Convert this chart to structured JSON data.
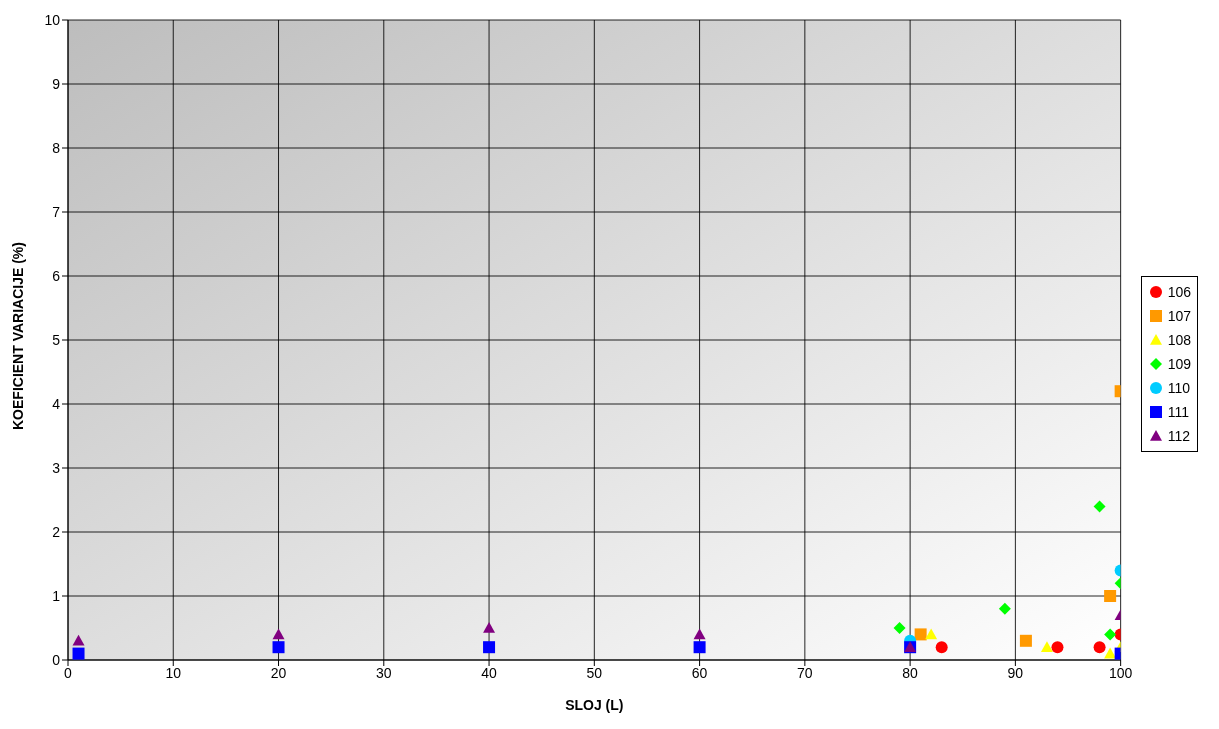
{
  "chart_data": {
    "type": "scatter",
    "xlabel": "SLOJ (L)",
    "ylabel": "KOEFICIENT VARIACIJE (%)",
    "xlim": [
      0,
      100
    ],
    "xticks": [
      0,
      10,
      20,
      30,
      40,
      50,
      60,
      70,
      80,
      90,
      100
    ],
    "ylim": [
      0,
      10
    ],
    "yticks": [
      0,
      1,
      2,
      3,
      4,
      5,
      6,
      7,
      8,
      9,
      10
    ],
    "grid": true,
    "legend": "right",
    "series": [
      {
        "name": "106",
        "color": "#ff0000",
        "marker": "circle",
        "x": [
          83,
          94,
          98,
          100
        ],
        "values": [
          0.2,
          0.2,
          0.2,
          0.4
        ]
      },
      {
        "name": "107",
        "color": "#ff9900",
        "marker": "square",
        "x": [
          81,
          91,
          99,
          100
        ],
        "values": [
          0.4,
          0.3,
          1.0,
          4.2
        ]
      },
      {
        "name": "108",
        "color": "#ffff00",
        "marker": "triangle",
        "x": [
          82,
          93,
          98,
          99,
          100
        ],
        "values": [
          0.4,
          0.2,
          null,
          0.1,
          0.2
        ]
      },
      {
        "name": "109",
        "color": "#00ff00",
        "marker": "diamond",
        "x": [
          79,
          89,
          98,
          99,
          100
        ],
        "values": [
          0.5,
          0.8,
          2.4,
          0.4,
          1.2
        ]
      },
      {
        "name": "110",
        "color": "#00ccff",
        "marker": "circle",
        "x": [
          80,
          100
        ],
        "values": [
          0.3,
          1.4
        ]
      },
      {
        "name": "111",
        "color": "#0000ff",
        "marker": "square",
        "x": [
          1,
          20,
          40,
          60,
          80,
          100
        ],
        "values": [
          0.1,
          0.2,
          0.2,
          0.2,
          0.2,
          0.1
        ]
      },
      {
        "name": "112",
        "color": "#800080",
        "marker": "triangle",
        "x": [
          1,
          20,
          40,
          60,
          80,
          100
        ],
        "values": [
          0.3,
          0.4,
          0.5,
          0.4,
          0.2,
          0.7
        ]
      }
    ]
  }
}
